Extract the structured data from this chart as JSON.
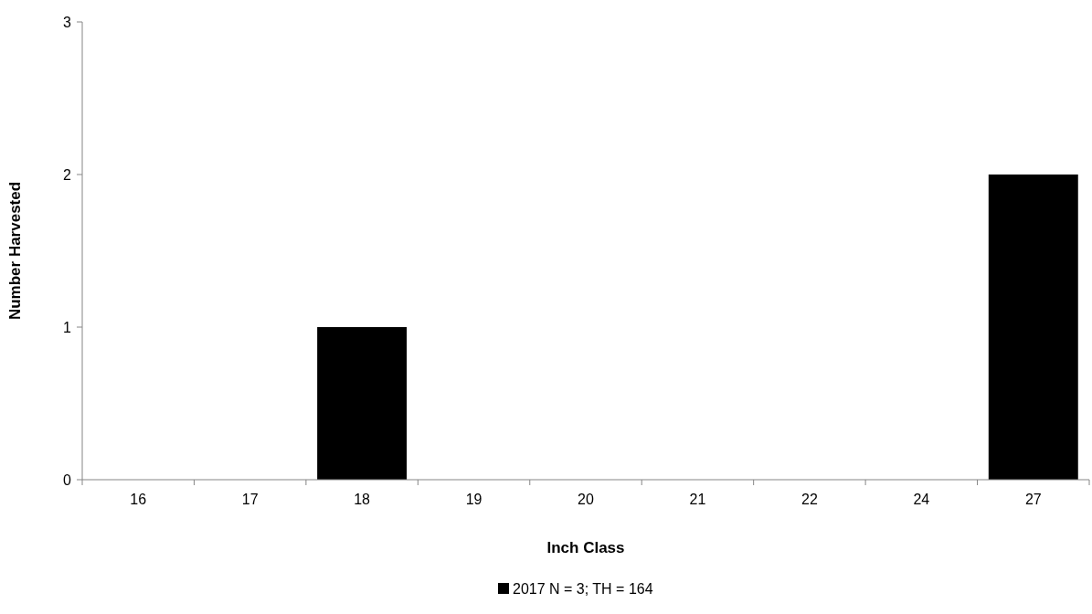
{
  "chart_data": {
    "type": "bar",
    "xlabel": "Inch Class",
    "ylabel": "Number Harvested",
    "categories": [
      "16",
      "17",
      "18",
      "19",
      "20",
      "21",
      "22",
      "24",
      "27"
    ],
    "series": [
      {
        "name": "2017 N = 3; TH = 164",
        "color": "#000000",
        "values": [
          0,
          0,
          1,
          0,
          0,
          0,
          0,
          0,
          2
        ]
      }
    ],
    "ylim": [
      0,
      3
    ],
    "yticks": [
      0,
      1,
      2,
      3
    ],
    "grid": false,
    "legend": "bottom"
  }
}
